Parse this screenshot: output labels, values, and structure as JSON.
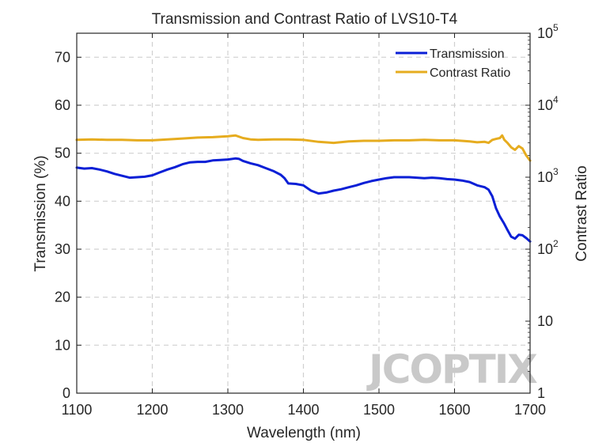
{
  "chart_data": {
    "type": "line",
    "title": "Transmission and Contrast Ratio of LVS10-T4",
    "xlabel": "Wavelength (nm)",
    "ylabel_left": "Transmission (%)",
    "ylabel_right": "Contrast Ratio",
    "xlim": [
      1100,
      1700
    ],
    "ylim_left": [
      0,
      75
    ],
    "ylim_right": [
      1,
      100000
    ],
    "right_axis_scale": "log",
    "x_ticks": [
      "1100",
      "1200",
      "1300",
      "1400",
      "1500",
      "1600",
      "1700"
    ],
    "y_left_ticks": [
      "0",
      "10",
      "20",
      "30",
      "40",
      "50",
      "60",
      "70"
    ],
    "y_right_ticks": [
      {
        "base": "1",
        "exp": ""
      },
      {
        "base": "10",
        "exp": ""
      },
      {
        "base": "10",
        "exp": "2"
      },
      {
        "base": "10",
        "exp": "3"
      },
      {
        "base": "10",
        "exp": "4"
      },
      {
        "base": "10",
        "exp": "5"
      }
    ],
    "grid": true,
    "legend_position": "top-right",
    "series": [
      {
        "name": "Transmission",
        "axis": "left",
        "color": "#0a1fd6",
        "x": [
          1100,
          1110,
          1120,
          1130,
          1140,
          1150,
          1160,
          1170,
          1180,
          1190,
          1200,
          1210,
          1220,
          1230,
          1240,
          1250,
          1260,
          1270,
          1280,
          1290,
          1300,
          1310,
          1315,
          1320,
          1330,
          1340,
          1350,
          1360,
          1370,
          1375,
          1380,
          1390,
          1400,
          1410,
          1420,
          1430,
          1440,
          1450,
          1460,
          1470,
          1480,
          1490,
          1500,
          1510,
          1520,
          1530,
          1540,
          1550,
          1560,
          1570,
          1580,
          1590,
          1600,
          1610,
          1620,
          1630,
          1640,
          1645,
          1650,
          1655,
          1660,
          1665,
          1670,
          1675,
          1680,
          1685,
          1690,
          1695,
          1700
        ],
        "values": [
          47.0,
          46.8,
          46.9,
          46.6,
          46.2,
          45.7,
          45.3,
          44.9,
          45.0,
          45.1,
          45.4,
          46.0,
          46.6,
          47.1,
          47.7,
          48.1,
          48.2,
          48.2,
          48.5,
          48.6,
          48.7,
          48.9,
          48.8,
          48.4,
          47.9,
          47.5,
          46.9,
          46.3,
          45.5,
          44.8,
          43.7,
          43.6,
          43.3,
          42.2,
          41.6,
          41.8,
          42.2,
          42.5,
          42.9,
          43.3,
          43.8,
          44.2,
          44.5,
          44.8,
          45.0,
          45.0,
          45.0,
          44.9,
          44.8,
          44.9,
          44.8,
          44.6,
          44.5,
          44.3,
          44.0,
          43.3,
          42.9,
          42.4,
          41.0,
          38.5,
          36.8,
          35.5,
          34.0,
          32.6,
          32.2,
          33.0,
          32.9,
          32.3,
          31.6
        ]
      },
      {
        "name": "Contrast Ratio",
        "axis": "right",
        "color": "#e6ac1f",
        "x": [
          1100,
          1120,
          1140,
          1160,
          1180,
          1200,
          1220,
          1240,
          1260,
          1280,
          1300,
          1310,
          1320,
          1330,
          1340,
          1360,
          1380,
          1400,
          1420,
          1440,
          1460,
          1480,
          1500,
          1520,
          1540,
          1560,
          1580,
          1600,
          1620,
          1630,
          1640,
          1645,
          1650,
          1655,
          1660,
          1663,
          1666,
          1670,
          1675,
          1680,
          1685,
          1690,
          1695,
          1700
        ],
        "values": [
          3300,
          3350,
          3300,
          3300,
          3250,
          3250,
          3350,
          3450,
          3550,
          3600,
          3700,
          3800,
          3500,
          3350,
          3300,
          3350,
          3350,
          3300,
          3100,
          3000,
          3150,
          3200,
          3200,
          3250,
          3250,
          3300,
          3250,
          3250,
          3150,
          3050,
          3100,
          3000,
          3300,
          3400,
          3500,
          3800,
          3300,
          3000,
          2600,
          2400,
          2700,
          2500,
          2000,
          1700
        ]
      }
    ]
  },
  "watermark": "JCOPTIX"
}
